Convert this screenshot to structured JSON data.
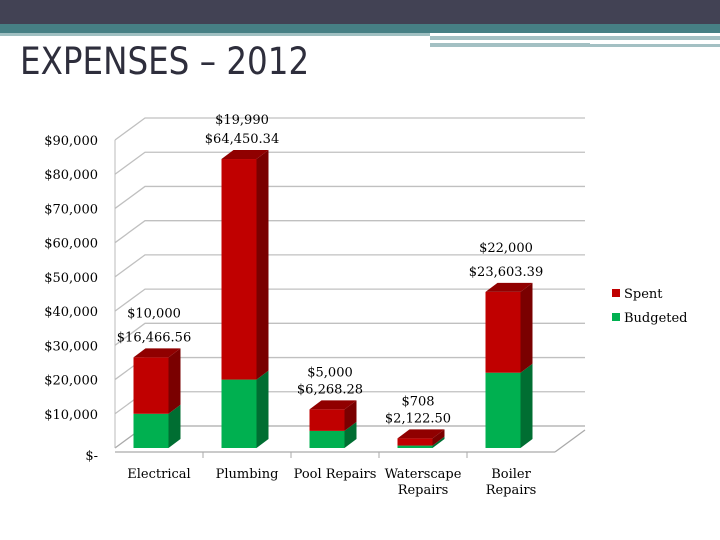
{
  "slide": {
    "title": "EXPENSES – 2012"
  },
  "chart_data": {
    "type": "bar",
    "stacked": true,
    "three_d": true,
    "title": "",
    "categories": [
      "Electrical",
      "Plumbing",
      "Pool Repairs",
      "Waterscape Repairs",
      "Boiler Repairs"
    ],
    "category_lines": [
      [
        "Electrical"
      ],
      [
        "Plumbing"
      ],
      [
        "Pool Repairs"
      ],
      [
        "Waterscape",
        "Repairs"
      ],
      [
        "Boiler",
        "Repairs"
      ]
    ],
    "series": [
      {
        "name": "Budgeted",
        "color": "#00b050",
        "values": [
          10000,
          19990,
          5000,
          708,
          22000
        ],
        "labels": [
          "$10,000",
          "$19,990",
          "$5,000",
          "$708",
          "$22,000"
        ]
      },
      {
        "name": "Spent",
        "color": "#c00000",
        "values": [
          16466.56,
          64450.34,
          6268.28,
          2122.5,
          23603.39
        ],
        "labels": [
          "$16,466.56",
          "$64,450.34",
          "$6,268.28",
          "$2,122.50",
          "$23,603.39"
        ]
      }
    ],
    "ylim": [
      0,
      90000
    ],
    "yticks": [
      "$-",
      "$10,000",
      "$20,000",
      "$30,000",
      "$40,000",
      "$50,000",
      "$60,000",
      "$70,000",
      "$80,000",
      "$90,000"
    ],
    "grid": true,
    "legend": "right",
    "legend_entries": [
      "Spent",
      "Budgeted"
    ]
  }
}
